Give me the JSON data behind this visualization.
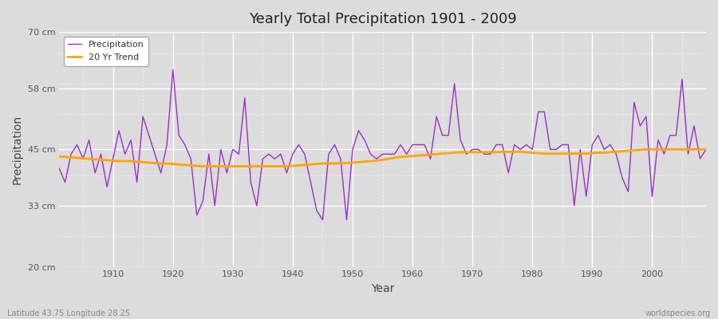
{
  "title": "Yearly Total Precipitation 1901 - 2009",
  "xlabel": "Year",
  "ylabel": "Precipitation",
  "footnote_left": "Latitude 43.75 Longitude 28.25",
  "footnote_right": "worldspecies.org",
  "ylim": [
    20,
    70
  ],
  "yticks": [
    20,
    33,
    45,
    58,
    70
  ],
  "ytick_labels": [
    "20 cm",
    "33 cm",
    "45 cm",
    "58 cm",
    "70 cm"
  ],
  "xlim": [
    1901,
    2009
  ],
  "xticks": [
    1910,
    1920,
    1930,
    1940,
    1950,
    1960,
    1970,
    1980,
    1990,
    2000
  ],
  "precip_color": "#9B30C8",
  "trend_color": "#FFA500",
  "bg_color": "#DCDCDC",
  "plot_bg_color": "#DCDCDC",
  "legend_precip": "Precipitation",
  "legend_trend": "20 Yr Trend",
  "years": [
    1901,
    1902,
    1903,
    1904,
    1905,
    1906,
    1907,
    1908,
    1909,
    1910,
    1911,
    1912,
    1913,
    1914,
    1915,
    1916,
    1917,
    1918,
    1919,
    1920,
    1921,
    1922,
    1923,
    1924,
    1925,
    1926,
    1927,
    1928,
    1929,
    1930,
    1931,
    1932,
    1933,
    1934,
    1935,
    1936,
    1937,
    1938,
    1939,
    1940,
    1941,
    1942,
    1943,
    1944,
    1945,
    1946,
    1947,
    1948,
    1949,
    1950,
    1951,
    1952,
    1953,
    1954,
    1955,
    1956,
    1957,
    1958,
    1959,
    1960,
    1961,
    1962,
    1963,
    1964,
    1965,
    1966,
    1967,
    1968,
    1969,
    1970,
    1971,
    1972,
    1973,
    1974,
    1975,
    1976,
    1977,
    1978,
    1979,
    1980,
    1981,
    1982,
    1983,
    1984,
    1985,
    1986,
    1987,
    1988,
    1989,
    1990,
    1991,
    1992,
    1993,
    1994,
    1995,
    1996,
    1997,
    1998,
    1999,
    2000,
    2001,
    2002,
    2003,
    2004,
    2005,
    2006,
    2007,
    2008,
    2009
  ],
  "precipitation": [
    41,
    38,
    44,
    46,
    43,
    47,
    40,
    44,
    37,
    43,
    49,
    44,
    47,
    38,
    52,
    48,
    44,
    40,
    46,
    62,
    48,
    46,
    43,
    31,
    34,
    44,
    33,
    45,
    40,
    45,
    44,
    56,
    38,
    33,
    43,
    44,
    43,
    44,
    40,
    44,
    46,
    44,
    38,
    32,
    30,
    44,
    46,
    43,
    30,
    45,
    49,
    47,
    44,
    43,
    44,
    44,
    44,
    46,
    44,
    46,
    46,
    46,
    43,
    52,
    48,
    48,
    59,
    47,
    44,
    45,
    45,
    44,
    44,
    46,
    46,
    40,
    46,
    45,
    46,
    45,
    53,
    53,
    45,
    45,
    46,
    46,
    33,
    45,
    35,
    46,
    48,
    45,
    46,
    44,
    39,
    36,
    55,
    50,
    52,
    35,
    47,
    44,
    48,
    48,
    60,
    44,
    50,
    43,
    45
  ],
  "trend": [
    43.5,
    43.4,
    43.3,
    43.2,
    43.1,
    43.0,
    42.9,
    42.8,
    42.7,
    42.6,
    42.5,
    42.5,
    42.5,
    42.4,
    42.3,
    42.2,
    42.1,
    42.0,
    42.0,
    41.9,
    41.8,
    41.7,
    41.6,
    41.5,
    41.4,
    41.4,
    41.4,
    41.4,
    41.4,
    41.4,
    41.4,
    41.4,
    41.4,
    41.4,
    41.4,
    41.4,
    41.4,
    41.4,
    41.4,
    41.5,
    41.6,
    41.7,
    41.8,
    41.9,
    42.0,
    42.0,
    42.0,
    42.1,
    42.1,
    42.2,
    42.3,
    42.4,
    42.5,
    42.6,
    42.8,
    43.0,
    43.2,
    43.4,
    43.5,
    43.6,
    43.7,
    43.8,
    43.9,
    44.0,
    44.1,
    44.2,
    44.3,
    44.4,
    44.4,
    44.4,
    44.4,
    44.4,
    44.4,
    44.4,
    44.5,
    44.5,
    44.5,
    44.5,
    44.4,
    44.3,
    44.2,
    44.1,
    44.1,
    44.1,
    44.1,
    44.1,
    44.1,
    44.1,
    44.1,
    44.2,
    44.3,
    44.3,
    44.4,
    44.5,
    44.6,
    44.7,
    44.8,
    44.9,
    45.0,
    45.0,
    45.0,
    45.0,
    45.0,
    45.0,
    45.0,
    45.0,
    45.0,
    45.0,
    45.0
  ]
}
